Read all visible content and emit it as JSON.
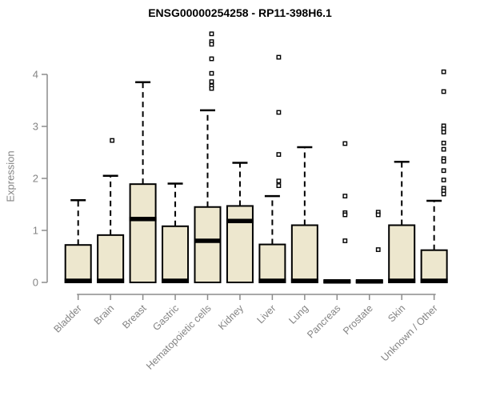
{
  "title": "ENSG00000254258 - RP11-398H6.1",
  "chart_data": {
    "type": "boxplot",
    "title": "ENSG00000254258 - RP11-398H6.1",
    "xlabel": "",
    "ylabel": "Expression",
    "ylim": [
      0,
      4
    ],
    "yticks": [
      0,
      1,
      2,
      3,
      4
    ],
    "grid": false,
    "legend": "none",
    "categories": [
      "Bladder",
      "Brain",
      "Breast",
      "Gastric",
      "Hematopoietic cells",
      "Kidney",
      "Liver",
      "Lung",
      "Pancreas",
      "Prostate",
      "Skin",
      "Unknown / Other"
    ],
    "series": [
      {
        "label": "Bladder",
        "q1": 0,
        "median": 0.03,
        "q3": 0.72,
        "whisker_low": 0,
        "whisker_high": 1.58,
        "outlier_dx": 0,
        "outliers": []
      },
      {
        "label": "Brain",
        "q1": 0,
        "median": 0.03,
        "q3": 0.91,
        "whisker_low": 0,
        "whisker_high": 2.05,
        "outlier_dx": 2,
        "outliers": [
          2.73
        ]
      },
      {
        "label": "Breast",
        "q1": 0,
        "median": 1.22,
        "q3": 1.89,
        "whisker_low": 0,
        "whisker_high": 3.85,
        "outlier_dx": 0,
        "outliers": []
      },
      {
        "label": "Gastric",
        "q1": 0,
        "median": 0.03,
        "q3": 1.08,
        "whisker_low": 0,
        "whisker_high": 1.9,
        "outlier_dx": 0,
        "outliers": []
      },
      {
        "label": "Hematopoietic cells",
        "q1": 0,
        "median": 0.8,
        "q3": 1.45,
        "whisker_low": 0,
        "whisker_high": 3.31,
        "outlier_dx": 5,
        "outliers": [
          4.78,
          4.63,
          4.58,
          4.3,
          4.02,
          3.86,
          3.78,
          3.73
        ]
      },
      {
        "label": "Kidney",
        "q1": 0,
        "median": 1.18,
        "q3": 1.47,
        "whisker_low": 0,
        "whisker_high": 2.3,
        "outlier_dx": 0,
        "outliers": []
      },
      {
        "label": "Liver",
        "q1": 0,
        "median": 0.03,
        "q3": 0.73,
        "whisker_low": 0,
        "whisker_high": 1.66,
        "outlier_dx": 8,
        "outliers": [
          4.33,
          3.27,
          2.46,
          1.95,
          1.86
        ]
      },
      {
        "label": "Lung",
        "q1": 0,
        "median": 0.03,
        "q3": 1.1,
        "whisker_low": 0,
        "whisker_high": 2.6,
        "outlier_dx": 0,
        "outliers": []
      },
      {
        "label": "Pancreas",
        "q1": 0,
        "median": 0.02,
        "q3": 0.03,
        "whisker_low": null,
        "whisker_high": null,
        "outlier_dx": 10,
        "outliers": [
          2.67,
          1.66,
          1.34,
          1.3,
          0.8
        ]
      },
      {
        "label": "Prostate",
        "q1": 0,
        "median": 0.02,
        "q3": 0.03,
        "whisker_low": null,
        "whisker_high": null,
        "outlier_dx": 11,
        "outliers": [
          1.35,
          1.3,
          0.63
        ]
      },
      {
        "label": "Skin",
        "q1": 0,
        "median": 0.03,
        "q3": 1.1,
        "whisker_low": 0,
        "whisker_high": 2.32,
        "outlier_dx": 0,
        "outliers": []
      },
      {
        "label": "Unknown / Other",
        "q1": 0,
        "median": 0.03,
        "q3": 0.62,
        "whisker_low": 0,
        "whisker_high": 1.57,
        "outlier_dx": 12,
        "outliers": [
          4.05,
          3.67,
          3.01,
          2.95,
          2.89,
          2.68,
          2.56,
          2.38,
          2.33,
          2.15,
          1.97,
          1.81,
          1.76,
          1.7
        ]
      }
    ],
    "colors": {
      "box_fill": "#EDE7CE",
      "box_stroke": "#000000",
      "median": "#000000",
      "whisker": "#000000",
      "axis": "#8C8C8C",
      "tick_label": "#848484",
      "title": "#000000",
      "background": "#FFFFFF"
    }
  }
}
